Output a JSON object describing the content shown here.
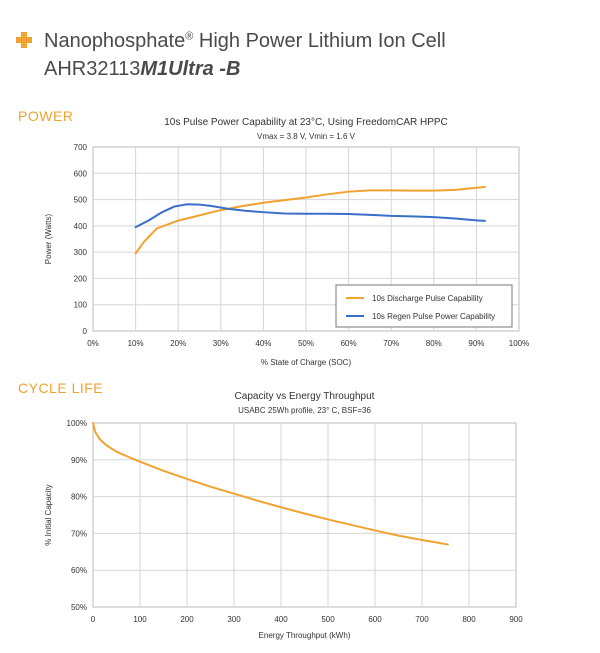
{
  "header": {
    "title_line1": "Nanophosphate",
    "title_reg": "®",
    "title_line1_rest": " High Power Lithium Ion Cell",
    "model_prefix": "AHR32113",
    "model_brand": "M1",
    "model_suffix": "Ultra -B"
  },
  "sections": {
    "power": "POWER",
    "cycle_life": "CYCLE LIFE"
  },
  "colors": {
    "accent": "#f0a330",
    "series_orange": "#f0a330",
    "series_blue": "#3a6fc9"
  },
  "chart_data": [
    {
      "type": "line",
      "title": "10s Pulse Power Capability at 23°C, Using FreedomCAR HPPC",
      "subtitle": "Vmax = 3.8 V, Vmin = 1.6 V",
      "xlabel": "% State of Charge (SOC)",
      "ylabel": "Power (Watts)",
      "xlim": [
        0,
        100
      ],
      "ylim": [
        0,
        700
      ],
      "x_ticks": [
        "0%",
        "10%",
        "20%",
        "30%",
        "40%",
        "50%",
        "60%",
        "70%",
        "80%",
        "90%",
        "100%"
      ],
      "y_ticks": [
        "0",
        "100",
        "200",
        "300",
        "400",
        "500",
        "600",
        "700"
      ],
      "grid": true,
      "legend": "bottom-right",
      "series": [
        {
          "name": "10s Discharge Pulse Capability",
          "color": "#f0a330",
          "x": [
            10,
            12,
            15,
            20,
            25,
            30,
            35,
            40,
            45,
            50,
            55,
            60,
            65,
            70,
            75,
            80,
            85,
            90,
            92
          ],
          "y": [
            295,
            340,
            390,
            420,
            440,
            460,
            475,
            488,
            498,
            508,
            520,
            530,
            535,
            535,
            534,
            534,
            537,
            545,
            548
          ]
        },
        {
          "name": "10s Regen Pulse Power Capability",
          "color": "#3a6fc9",
          "x": [
            10,
            13,
            16,
            19,
            22,
            25,
            28,
            32,
            36,
            40,
            45,
            50,
            55,
            60,
            65,
            70,
            75,
            80,
            85,
            90,
            92
          ],
          "y": [
            395,
            420,
            450,
            473,
            482,
            481,
            475,
            464,
            457,
            452,
            447,
            446,
            446,
            445,
            442,
            438,
            436,
            433,
            428,
            421,
            419
          ]
        }
      ]
    },
    {
      "type": "line",
      "title": "Capacity vs Energy Throughput",
      "subtitle": "USABC 25Wh profile, 23° C, BSF=36",
      "xlabel": "Energy Throughput (kWh)",
      "ylabel": "% Initial  Capacity",
      "xlim": [
        0,
        900
      ],
      "ylim": [
        50,
        100
      ],
      "x_ticks": [
        "0",
        "100",
        "200",
        "300",
        "400",
        "500",
        "600",
        "700",
        "800",
        "900"
      ],
      "y_ticks": [
        "50%",
        "60%",
        "70%",
        "80%",
        "90%",
        "100%"
      ],
      "grid": true,
      "series": [
        {
          "color": "#f0a330",
          "x": [
            0,
            5,
            15,
            30,
            50,
            75,
            100,
            150,
            200,
            250,
            300,
            350,
            400,
            450,
            500,
            550,
            600,
            650,
            700,
            755
          ],
          "y": [
            100,
            97.5,
            95.5,
            93.8,
            92.2,
            90.8,
            89.5,
            87.0,
            84.8,
            82.7,
            80.8,
            78.9,
            77.1,
            75.4,
            73.8,
            72.3,
            70.8,
            69.4,
            68.2,
            67.0
          ]
        }
      ]
    }
  ]
}
